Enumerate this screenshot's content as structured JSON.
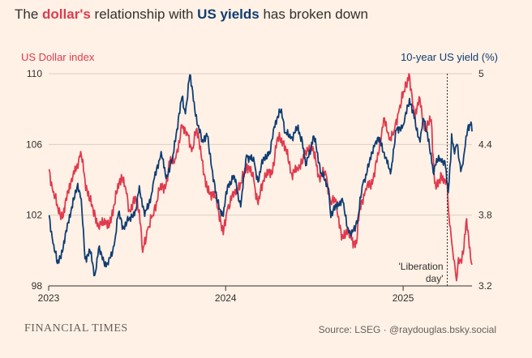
{
  "title": {
    "part1": "The ",
    "part2": "dollar's",
    "part3": " relationship with ",
    "part4": "US yields",
    "part5": " has broken down"
  },
  "left_axis_title": "US Dollar index",
  "right_axis_title": "10-year US yield (%)",
  "annotation": {
    "line1": "'Liberation",
    "line2": "day'"
  },
  "footer": {
    "brand": "FINANCIAL TIMES",
    "source": "Source: LSEG · @raydouglas.bsky.social"
  },
  "colors": {
    "background": "#fff1e5",
    "dollar": "#e03a4e",
    "yield": "#0f3d73",
    "grid": "#d9cfc4"
  },
  "chart_data": {
    "type": "line",
    "title": "The dollar's relationship with US yields has broken down",
    "x_ticks": [
      "2023",
      "2024",
      "2025"
    ],
    "xlim": [
      "2023-01-01",
      "2025-05-23"
    ],
    "left_axis": {
      "label": "US Dollar index",
      "ylim": [
        98,
        110
      ],
      "ticks": [
        "110",
        "106",
        "102",
        "98"
      ]
    },
    "right_axis": {
      "label": "10-year US yield (%)",
      "ylim": [
        3.2,
        5.0
      ],
      "ticks": [
        "5",
        "4.4",
        "3.8",
        "3.2"
      ]
    },
    "event": {
      "date": "2025-04-02",
      "label": "'Liberation day'"
    },
    "series": [
      {
        "name": "US Dollar index",
        "axis": "left",
        "points": [
          [
            "2023-01-02",
            104.6
          ],
          [
            "2023-01-10",
            103.3
          ],
          [
            "2023-01-20",
            102.4
          ],
          [
            "2023-01-31",
            101.9
          ],
          [
            "2023-02-10",
            103.4
          ],
          [
            "2023-02-20",
            104.2
          ],
          [
            "2023-03-01",
            104.9
          ],
          [
            "2023-03-08",
            105.6
          ],
          [
            "2023-03-17",
            104.0
          ],
          [
            "2023-03-27",
            102.8
          ],
          [
            "2023-04-07",
            102.0
          ],
          [
            "2023-04-14",
            101.3
          ],
          [
            "2023-04-26",
            101.8
          ],
          [
            "2023-05-05",
            101.3
          ],
          [
            "2023-05-15",
            102.5
          ],
          [
            "2023-05-31",
            104.3
          ],
          [
            "2023-06-09",
            103.5
          ],
          [
            "2023-06-16",
            102.3
          ],
          [
            "2023-06-30",
            102.9
          ],
          [
            "2023-07-07",
            102.3
          ],
          [
            "2023-07-14",
            99.9
          ],
          [
            "2023-07-24",
            101.2
          ],
          [
            "2023-08-04",
            102.0
          ],
          [
            "2023-08-17",
            103.4
          ],
          [
            "2023-08-31",
            103.7
          ],
          [
            "2023-09-08",
            105.0
          ],
          [
            "2023-09-20",
            105.2
          ],
          [
            "2023-09-28",
            106.1
          ],
          [
            "2023-10-03",
            107.1
          ],
          [
            "2023-10-13",
            106.7
          ],
          [
            "2023-10-23",
            105.6
          ],
          [
            "2023-11-01",
            106.8
          ],
          [
            "2023-11-10",
            105.9
          ],
          [
            "2023-11-21",
            103.6
          ],
          [
            "2023-12-01",
            103.3
          ],
          [
            "2023-12-13",
            102.9
          ],
          [
            "2023-12-27",
            100.9
          ],
          [
            "2024-01-05",
            102.4
          ],
          [
            "2024-01-19",
            103.3
          ],
          [
            "2024-02-02",
            103.8
          ],
          [
            "2024-02-14",
            104.9
          ],
          [
            "2024-02-28",
            104.0
          ],
          [
            "2024-03-08",
            102.6
          ],
          [
            "2024-03-22",
            104.4
          ],
          [
            "2024-04-05",
            104.3
          ],
          [
            "2024-04-16",
            106.3
          ],
          [
            "2024-04-30",
            106.2
          ],
          [
            "2024-05-15",
            104.4
          ],
          [
            "2024-05-28",
            104.6
          ],
          [
            "2024-06-14",
            105.5
          ],
          [
            "2024-06-26",
            106.0
          ],
          [
            "2024-07-12",
            104.2
          ],
          [
            "2024-07-26",
            104.3
          ],
          [
            "2024-08-05",
            102.7
          ],
          [
            "2024-08-15",
            102.9
          ],
          [
            "2024-08-27",
            100.6
          ],
          [
            "2024-09-06",
            101.2
          ],
          [
            "2024-09-17",
            100.6
          ],
          [
            "2024-09-27",
            100.4
          ],
          [
            "2024-10-04",
            102.5
          ],
          [
            "2024-10-16",
            103.5
          ],
          [
            "2024-10-31",
            104.0
          ],
          [
            "2024-11-08",
            105.0
          ],
          [
            "2024-11-22",
            107.5
          ],
          [
            "2024-12-03",
            106.3
          ],
          [
            "2024-12-13",
            106.7
          ],
          [
            "2024-12-24",
            108.0
          ],
          [
            "2025-01-03",
            109.0
          ],
          [
            "2025-01-13",
            110.0
          ],
          [
            "2025-01-24",
            107.5
          ],
          [
            "2025-02-03",
            108.7
          ],
          [
            "2025-02-14",
            106.8
          ],
          [
            "2025-02-28",
            107.4
          ],
          [
            "2025-03-07",
            103.8
          ],
          [
            "2025-03-14",
            103.6
          ],
          [
            "2025-03-21",
            104.3
          ],
          [
            "2025-03-28",
            104.0
          ],
          [
            "2025-04-02",
            103.8
          ],
          [
            "2025-04-04",
            102.5
          ],
          [
            "2025-04-10",
            100.8
          ],
          [
            "2025-04-15",
            99.5
          ],
          [
            "2025-04-21",
            98.3
          ],
          [
            "2025-04-25",
            99.6
          ],
          [
            "2025-04-30",
            99.5
          ],
          [
            "2025-05-05",
            99.8
          ],
          [
            "2025-05-12",
            101.8
          ],
          [
            "2025-05-16",
            100.8
          ],
          [
            "2025-05-20",
            99.6
          ],
          [
            "2025-05-23",
            99.2
          ]
        ]
      },
      {
        "name": "10-year US yield (%)",
        "axis": "right",
        "points": [
          [
            "2023-01-02",
            3.8
          ],
          [
            "2023-01-10",
            3.56
          ],
          [
            "2023-01-19",
            3.39
          ],
          [
            "2023-01-31",
            3.52
          ],
          [
            "2023-02-10",
            3.74
          ],
          [
            "2023-02-22",
            3.93
          ],
          [
            "2023-03-02",
            4.07
          ],
          [
            "2023-03-09",
            3.94
          ],
          [
            "2023-03-17",
            3.43
          ],
          [
            "2023-03-27",
            3.5
          ],
          [
            "2023-04-06",
            3.29
          ],
          [
            "2023-04-14",
            3.52
          ],
          [
            "2023-04-25",
            3.4
          ],
          [
            "2023-05-04",
            3.38
          ],
          [
            "2023-05-16",
            3.54
          ],
          [
            "2023-05-25",
            3.82
          ],
          [
            "2023-06-05",
            3.69
          ],
          [
            "2023-06-16",
            3.77
          ],
          [
            "2023-06-30",
            3.84
          ],
          [
            "2023-07-07",
            4.05
          ],
          [
            "2023-07-18",
            3.79
          ],
          [
            "2023-07-31",
            3.96
          ],
          [
            "2023-08-04",
            4.06
          ],
          [
            "2023-08-21",
            4.34
          ],
          [
            "2023-08-31",
            4.11
          ],
          [
            "2023-09-13",
            4.27
          ],
          [
            "2023-09-21",
            4.49
          ],
          [
            "2023-10-03",
            4.8
          ],
          [
            "2023-10-10",
            4.66
          ],
          [
            "2023-10-19",
            4.99
          ],
          [
            "2023-10-25",
            4.85
          ],
          [
            "2023-11-03",
            4.57
          ],
          [
            "2023-11-14",
            4.44
          ],
          [
            "2023-11-24",
            4.47
          ],
          [
            "2023-12-05",
            4.17
          ],
          [
            "2023-12-14",
            3.92
          ],
          [
            "2023-12-27",
            3.79
          ],
          [
            "2024-01-05",
            4.05
          ],
          [
            "2024-01-19",
            4.13
          ],
          [
            "2024-02-01",
            3.87
          ],
          [
            "2024-02-13",
            4.31
          ],
          [
            "2024-02-29",
            4.25
          ],
          [
            "2024-03-08",
            4.08
          ],
          [
            "2024-03-19",
            4.29
          ],
          [
            "2024-04-01",
            4.32
          ],
          [
            "2024-04-10",
            4.55
          ],
          [
            "2024-04-25",
            4.7
          ],
          [
            "2024-05-03",
            4.5
          ],
          [
            "2024-05-14",
            4.45
          ],
          [
            "2024-05-28",
            4.54
          ],
          [
            "2024-06-07",
            4.43
          ],
          [
            "2024-06-14",
            4.22
          ],
          [
            "2024-07-01",
            4.47
          ],
          [
            "2024-07-16",
            4.16
          ],
          [
            "2024-07-31",
            4.03
          ],
          [
            "2024-08-05",
            3.78
          ],
          [
            "2024-08-16",
            3.89
          ],
          [
            "2024-08-30",
            3.91
          ],
          [
            "2024-09-11",
            3.65
          ],
          [
            "2024-09-16",
            3.62
          ],
          [
            "2024-09-30",
            3.78
          ],
          [
            "2024-10-10",
            4.07
          ],
          [
            "2024-10-22",
            4.21
          ],
          [
            "2024-11-01",
            4.39
          ],
          [
            "2024-11-06",
            4.43
          ],
          [
            "2024-11-15",
            4.43
          ],
          [
            "2024-11-26",
            4.29
          ],
          [
            "2024-12-06",
            4.15
          ],
          [
            "2024-12-18",
            4.52
          ],
          [
            "2025-01-02",
            4.57
          ],
          [
            "2025-01-14",
            4.79
          ],
          [
            "2025-01-24",
            4.62
          ],
          [
            "2025-02-05",
            4.42
          ],
          [
            "2025-02-12",
            4.62
          ],
          [
            "2025-02-20",
            4.5
          ],
          [
            "2025-03-04",
            4.16
          ],
          [
            "2025-03-11",
            4.28
          ],
          [
            "2025-03-21",
            4.25
          ],
          [
            "2025-03-28",
            4.26
          ],
          [
            "2025-04-04",
            3.99
          ],
          [
            "2025-04-09",
            4.26
          ],
          [
            "2025-04-11",
            4.49
          ],
          [
            "2025-04-17",
            4.32
          ],
          [
            "2025-04-22",
            4.4
          ],
          [
            "2025-04-30",
            4.17
          ],
          [
            "2025-05-06",
            4.3
          ],
          [
            "2025-05-14",
            4.53
          ],
          [
            "2025-05-21",
            4.59
          ],
          [
            "2025-05-23",
            4.51
          ]
        ]
      }
    ]
  }
}
